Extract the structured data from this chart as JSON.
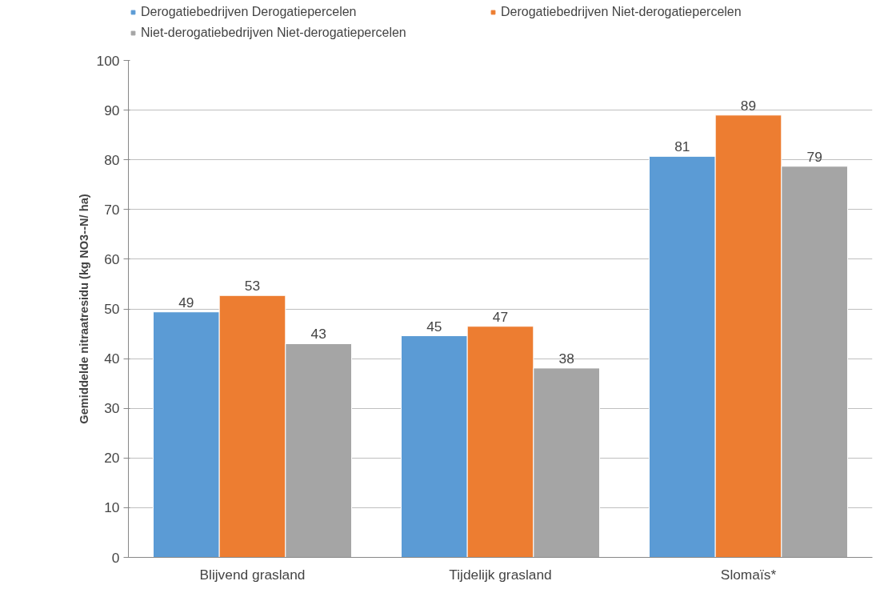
{
  "chart_data": {
    "type": "bar",
    "ylabel": "Gemiddelde nitraatresidu (kg NO3--N/ ha)",
    "categories": [
      "Blijvend grasland",
      "Tijdelijk grasland",
      "Slomaïs*"
    ],
    "series": [
      {
        "name": "Derogatiebedrijven Derogatiepercelen",
        "color": "#5b9bd5",
        "values": [
          49.4,
          44.6,
          80.7
        ],
        "value_labels": [
          "49",
          "45",
          "81"
        ]
      },
      {
        "name": "Derogatiebedrijven Niet-derogatiepercelen",
        "color": "#ed7d31",
        "values": [
          52.7,
          46.5,
          89.0
        ],
        "value_labels": [
          "53",
          "47",
          "89"
        ]
      },
      {
        "name": "Niet-derogatiebedrijven Niet-derogatiepercelen",
        "color": "#a5a5a5",
        "values": [
          43.0,
          38.1,
          78.7
        ],
        "value_labels": [
          "43",
          "38",
          "79"
        ]
      }
    ],
    "ylim": [
      0,
      100
    ],
    "yticks": [
      0,
      10,
      20,
      30,
      40,
      50,
      60,
      70,
      80,
      90,
      100
    ],
    "grid": "y",
    "legend": "top"
  }
}
